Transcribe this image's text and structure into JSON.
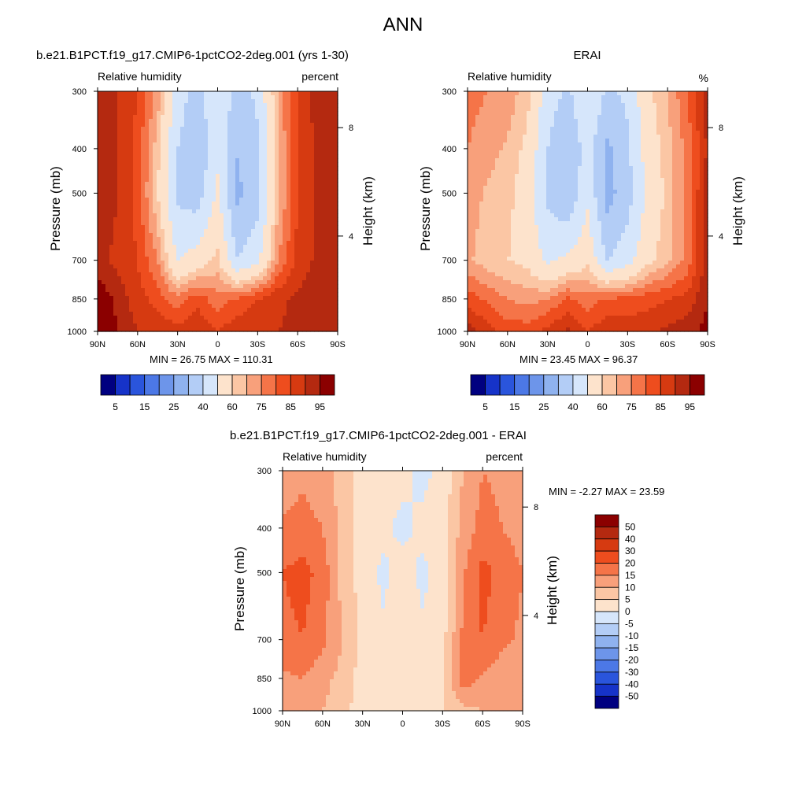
{
  "title": "ANN",
  "colors": {
    "pos": [
      "#fde3cc",
      "#fbc6a4",
      "#f8a07b",
      "#f57448",
      "#ee4d1e",
      "#d63a11",
      "#b42910",
      "#8b0000"
    ],
    "neg": [
      "#d6e6fb",
      "#b3cdf6",
      "#8fb2ef",
      "#6d95ea",
      "#4c78e6",
      "#2a55dc",
      "#1633c9",
      "#000080"
    ]
  },
  "panels": {
    "model": {
      "title": "b.e21.B1PCT.f19_g17.CMIP6-1pctCO2-2deg.001 (yrs 1-30)",
      "left_label": "Relative humidity",
      "right_label": "percent",
      "ylabel": "Pressure (mb)",
      "y2label": "Height (km)",
      "minmax": "MIN = 26.75  MAX = 110.31"
    },
    "obs": {
      "title": "ERAI",
      "left_label": "Relative humidity",
      "right_label": "%",
      "ylabel": "Pressure (mb)",
      "y2label": "Height (km)",
      "minmax": "MIN = 23.45  MAX = 96.37"
    },
    "diff": {
      "title": "b.e21.B1PCT.f19_g17.CMIP6-1pctCO2-2deg.001 - ERAI",
      "left_label": "Relative humidity",
      "right_label": "percent",
      "ylabel": "Pressure (mb)",
      "y2label": "Height (km)",
      "minmax": "MIN =  -2.27  MAX =  23.59"
    }
  },
  "chart_data": [
    {
      "type": "heatmap",
      "name": "model",
      "title": "b.e21.B1PCT.f19_g17.CMIP6-1pctCO2-2deg.001 (yrs 1-30)",
      "variable": "Relative humidity",
      "units": "percent",
      "xlabel": "",
      "ylabel": "Pressure (mb)",
      "y2label": "Height (km)",
      "xticks": [
        "90N",
        "60N",
        "30N",
        "0",
        "30S",
        "60S",
        "90S"
      ],
      "yticks": [
        "300",
        "400",
        "500",
        "700",
        "850",
        "1000"
      ],
      "y2ticks": [
        "8",
        "4"
      ],
      "contour_levels": [
        5,
        10,
        15,
        20,
        25,
        30,
        40,
        50,
        60,
        65,
        70,
        75,
        80,
        85,
        90,
        95
      ],
      "colorbar_labels": [
        "5",
        "15",
        "25",
        "40",
        "60",
        "75",
        "85",
        "95"
      ],
      "min": 26.75,
      "max": 110.31,
      "lat": [
        90,
        75,
        60,
        45,
        30,
        15,
        0,
        -15,
        -30,
        -45,
        -60,
        -75,
        -90
      ],
      "pressure": [
        300,
        400,
        500,
        700,
        850,
        1000
      ],
      "values": [
        [
          88,
          85,
          80,
          68,
          45,
          35,
          50,
          35,
          42,
          66,
          80,
          88,
          90
        ],
        [
          88,
          85,
          78,
          62,
          40,
          32,
          48,
          30,
          38,
          64,
          80,
          86,
          88
        ],
        [
          88,
          85,
          78,
          60,
          38,
          35,
          52,
          28,
          36,
          63,
          80,
          86,
          90
        ],
        [
          86,
          84,
          80,
          70,
          50,
          55,
          62,
          40,
          48,
          70,
          82,
          86,
          88
        ],
        [
          95,
          88,
          82,
          78,
          72,
          78,
          72,
          76,
          80,
          84,
          86,
          88,
          90
        ],
        [
          100,
          90,
          85,
          85,
          82,
          85,
          80,
          84,
          84,
          85,
          86,
          88,
          90
        ]
      ]
    },
    {
      "type": "heatmap",
      "name": "obs",
      "title": "ERAI",
      "variable": "Relative humidity",
      "units": "%",
      "xlabel": "",
      "ylabel": "Pressure (mb)",
      "y2label": "Height (km)",
      "xticks": [
        "90N",
        "60N",
        "30N",
        "0",
        "30S",
        "60S",
        "90S"
      ],
      "yticks": [
        "300",
        "400",
        "500",
        "700",
        "850",
        "1000"
      ],
      "y2ticks": [
        "8",
        "4"
      ],
      "contour_levels": [
        5,
        10,
        15,
        20,
        25,
        30,
        40,
        50,
        60,
        65,
        70,
        75,
        80,
        85,
        90,
        95
      ],
      "colorbar_labels": [
        "5",
        "15",
        "25",
        "40",
        "60",
        "75",
        "85",
        "95"
      ],
      "min": 23.45,
      "max": 96.37,
      "lat": [
        90,
        75,
        60,
        45,
        30,
        15,
        0,
        -15,
        -30,
        -45,
        -60,
        -75,
        -90
      ],
      "pressure": [
        300,
        400,
        500,
        700,
        850,
        1000
      ],
      "values": [
        [
          72,
          70,
          68,
          62,
          45,
          38,
          50,
          38,
          42,
          58,
          65,
          75,
          88
        ],
        [
          70,
          67,
          64,
          58,
          40,
          30,
          45,
          28,
          38,
          55,
          63,
          72,
          86
        ],
        [
          68,
          64,
          62,
          55,
          38,
          32,
          48,
          26,
          36,
          52,
          62,
          72,
          88
        ],
        [
          66,
          62,
          60,
          58,
          48,
          52,
          58,
          40,
          46,
          58,
          64,
          72,
          88
        ],
        [
          78,
          74,
          70,
          68,
          70,
          76,
          72,
          76,
          76,
          78,
          80,
          82,
          90
        ],
        [
          88,
          82,
          78,
          78,
          82,
          86,
          80,
          84,
          84,
          84,
          86,
          88,
          92
        ]
      ]
    },
    {
      "type": "heatmap",
      "name": "diff",
      "title": "b.e21.B1PCT.f19_g17.CMIP6-1pctCO2-2deg.001 - ERAI",
      "variable": "Relative humidity",
      "units": "percent",
      "xlabel": "",
      "ylabel": "Pressure (mb)",
      "y2label": "Height (km)",
      "xticks": [
        "90N",
        "60N",
        "30N",
        "0",
        "30S",
        "60S",
        "90S"
      ],
      "yticks": [
        "300",
        "400",
        "500",
        "700",
        "850",
        "1000"
      ],
      "y2ticks": [
        "8",
        "4"
      ],
      "contour_levels": [
        -50,
        -40,
        -30,
        -20,
        -15,
        -10,
        -5,
        0,
        5,
        10,
        15,
        20,
        30,
        40,
        50
      ],
      "colorbar_labels": [
        "50",
        "40",
        "30",
        "20",
        "15",
        "10",
        "5",
        "0",
        "-5",
        "-10",
        "-15",
        "-20",
        "-30",
        "-40",
        "-50"
      ],
      "min": -2.27,
      "max": 23.59,
      "lat": [
        90,
        75,
        60,
        45,
        30,
        15,
        0,
        -15,
        -30,
        -45,
        -60,
        -75,
        -90
      ],
      "pressure": [
        300,
        400,
        500,
        700,
        850,
        1000
      ],
      "values": [
        [
          12,
          14,
          12,
          8,
          3,
          1,
          1,
          -1,
          1,
          10,
          15,
          14,
          12
        ],
        [
          16,
          17,
          15,
          8,
          3,
          1,
          -1,
          1,
          3,
          12,
          17,
          15,
          13
        ],
        [
          20,
          22,
          18,
          8,
          3,
          -1,
          2,
          -1,
          2,
          14,
          22,
          18,
          15
        ],
        [
          18,
          20,
          16,
          10,
          3,
          1,
          3,
          1,
          3,
          16,
          20,
          16,
          14
        ],
        [
          14,
          15,
          12,
          8,
          3,
          3,
          2,
          3,
          5,
          18,
          14,
          12,
          12
        ],
        [
          10,
          12,
          10,
          6,
          3,
          2,
          2,
          3,
          5,
          8,
          10,
          10,
          10
        ]
      ]
    }
  ]
}
